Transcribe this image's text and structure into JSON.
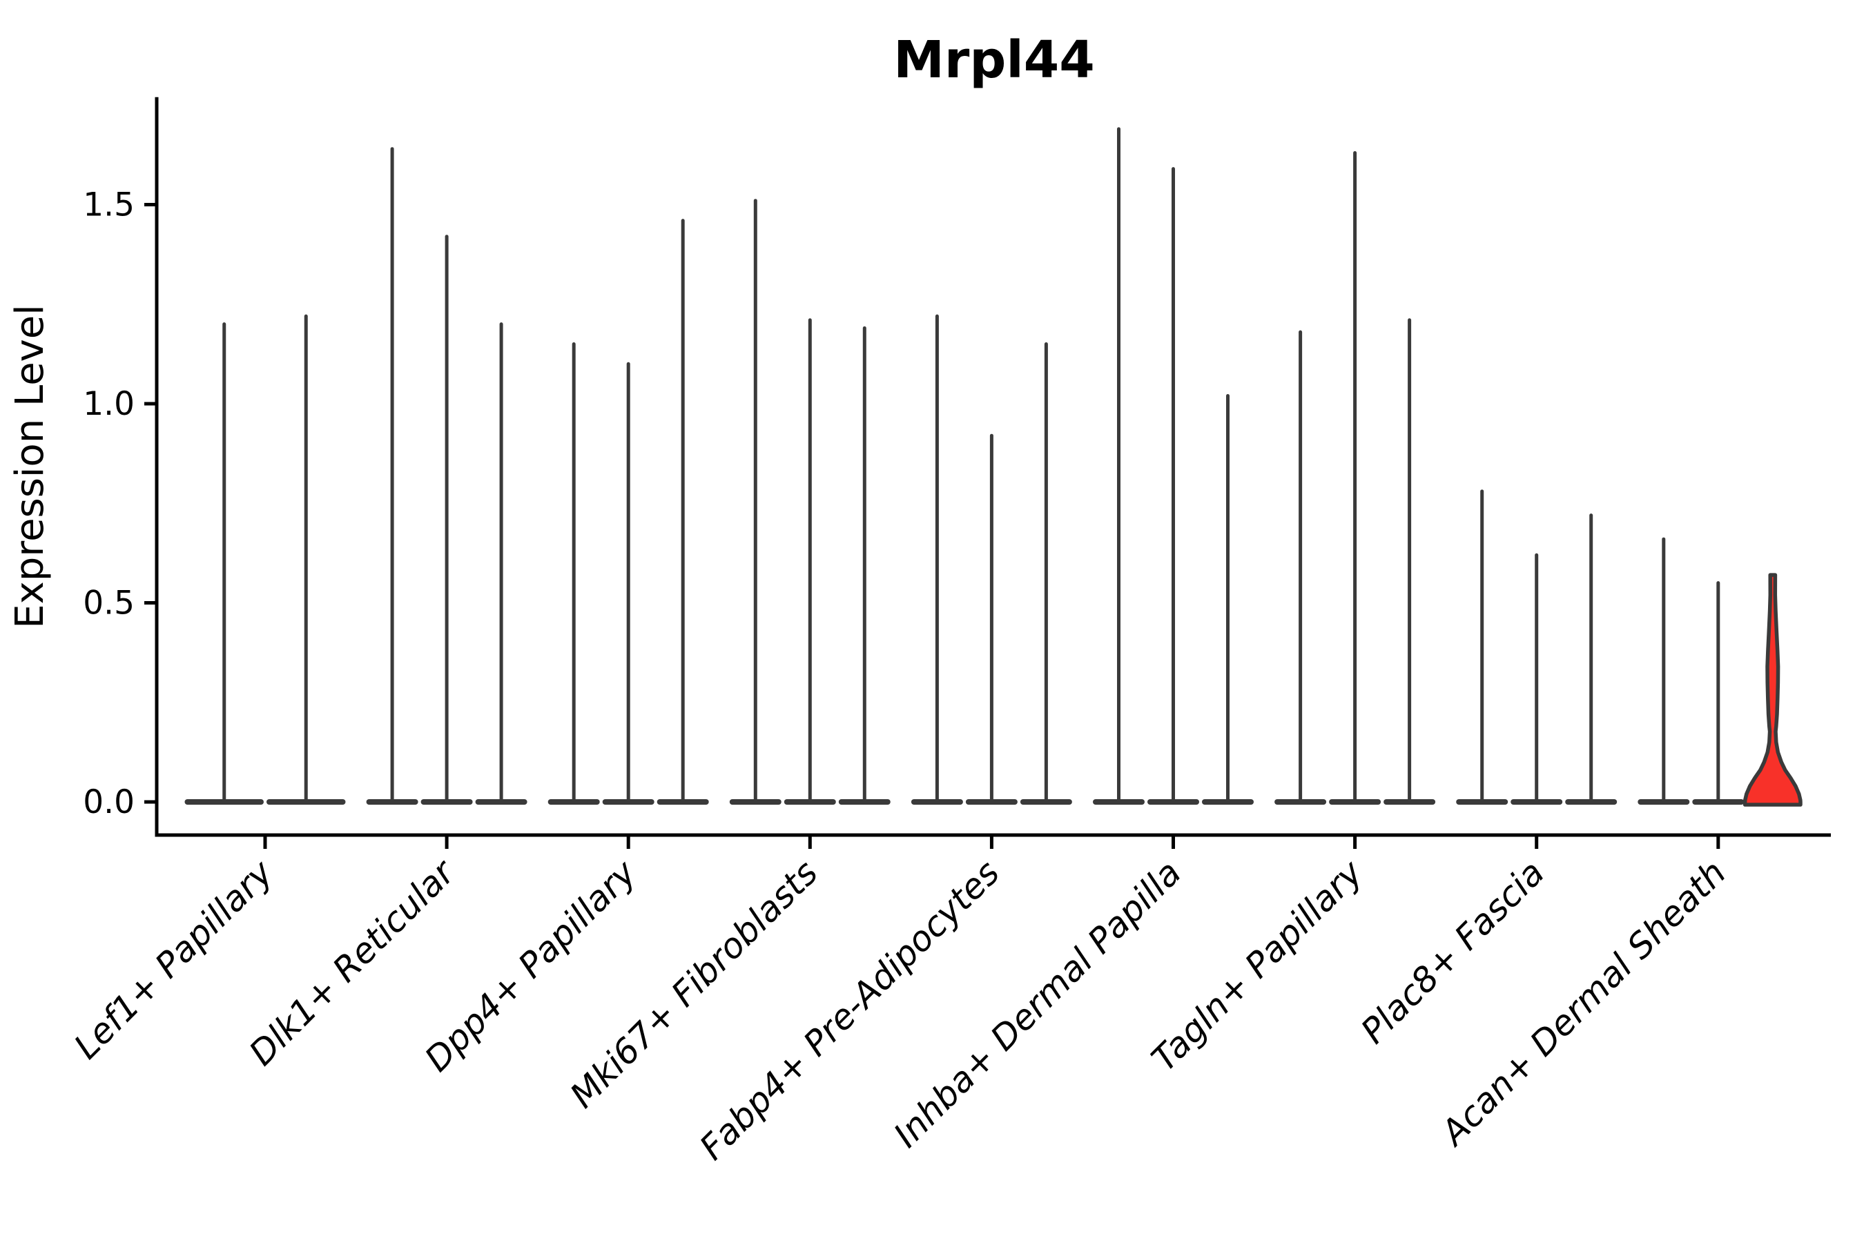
{
  "chart_data": {
    "type": "violin",
    "title": "Mrpl44",
    "ylabel": "Expression Level",
    "xlabel": "",
    "y_tick_labels": [
      "0.0",
      "0.5",
      "1.0",
      "1.5"
    ],
    "y_ticks": [
      0.0,
      0.5,
      1.0,
      1.5
    ],
    "ylim": [
      -0.083,
      1.77
    ],
    "grid": false,
    "legend": "none",
    "categories": [
      "Lef1+ Papillary",
      "Dlk1+ Reticular",
      "Dpp4+ Papillary",
      "Mki67+ Fibroblasts",
      "Fabp4+ Pre-Adipocytes",
      "Inhba+ Dermal Papilla",
      "Tagln+ Papillary",
      "Plac8+ Fascia",
      "Acan+ Dermal Sheath"
    ],
    "groups": [
      {
        "category": "Lef1+ Papillary",
        "violin_max_expression": [
          1.2,
          1.22
        ]
      },
      {
        "category": "Dlk1+ Reticular",
        "violin_max_expression": [
          1.64,
          1.42,
          1.2
        ]
      },
      {
        "category": "Dpp4+ Papillary",
        "violin_max_expression": [
          1.15,
          1.1,
          1.46
        ]
      },
      {
        "category": "Mki67+ Fibroblasts",
        "violin_max_expression": [
          1.51,
          1.21,
          1.19
        ]
      },
      {
        "category": "Fabp4+ Pre-Adipocytes",
        "violin_max_expression": [
          1.22,
          0.92,
          1.15
        ]
      },
      {
        "category": "Inhba+ Dermal Papilla",
        "violin_max_expression": [
          1.69,
          1.59,
          1.02
        ]
      },
      {
        "category": "Tagln+ Papillary",
        "violin_max_expression": [
          1.18,
          1.63,
          1.21
        ]
      },
      {
        "category": "Plac8+ Fascia",
        "violin_max_expression": [
          0.78,
          0.62,
          0.72
        ]
      },
      {
        "category": "Acan+ Dermal Sheath",
        "violin_max_expression": [
          0.66,
          0.55,
          0.57
        ]
      }
    ],
    "highlighted_violin": {
      "category": "Acan+ Dermal Sheath",
      "violin_index": 2,
      "max_expression": 0.57,
      "description": "only violin with visible density width and red fill; all others are needle-thin",
      "profile_value_halfwidth": [
        [
          0.57,
          3.6
        ],
        [
          0.52,
          3.5
        ],
        [
          0.48,
          4.2
        ],
        [
          0.43,
          5.5
        ],
        [
          0.38,
          6.9
        ],
        [
          0.34,
          7.8
        ],
        [
          0.3,
          7.6
        ],
        [
          0.26,
          7.0
        ],
        [
          0.22,
          6.2
        ],
        [
          0.19,
          5.0
        ],
        [
          0.177,
          4.2
        ],
        [
          0.15,
          5.0
        ],
        [
          0.125,
          7.5
        ],
        [
          0.1,
          12.5
        ],
        [
          0.08,
          18.0
        ],
        [
          0.06,
          26.0
        ],
        [
          0.04,
          33.0
        ],
        [
          0.02,
          38.0
        ],
        [
          0.005,
          40.0
        ],
        [
          0.0,
          40.2
        ]
      ]
    },
    "colors": {
      "violin_stroke": "#3a3a3a",
      "highlight_fill": "#f83129",
      "axis": "#000000",
      "background": "#ffffff"
    }
  }
}
